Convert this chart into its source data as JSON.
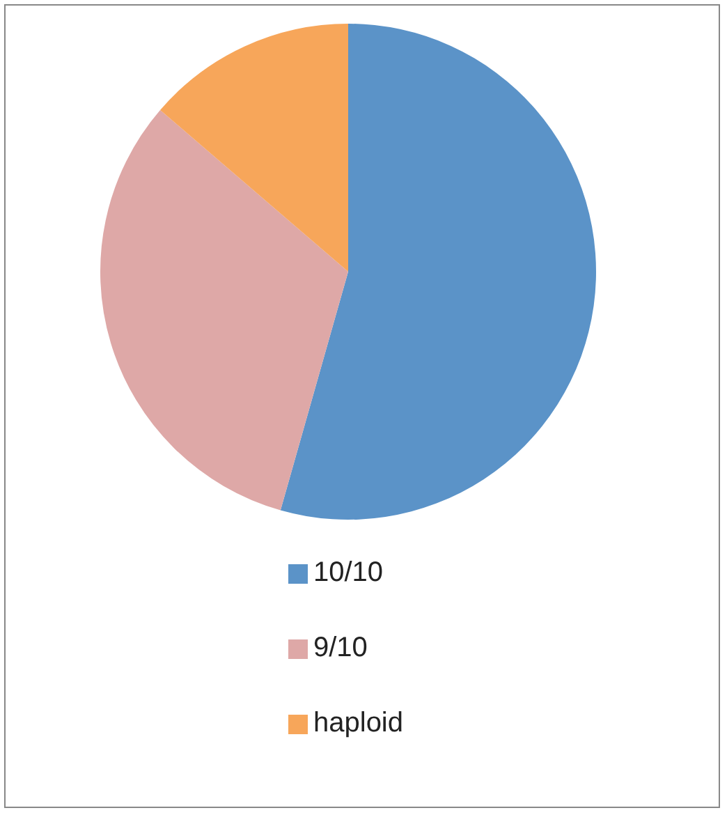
{
  "chart_data": {
    "type": "pie",
    "categories": [
      "10/10",
      "9/10",
      "haploid"
    ],
    "values": [
      54.4,
      31.9,
      13.7
    ],
    "colors": [
      "#5b93c8",
      "#dea8a7",
      "#f7a65a"
    ],
    "legend": "bottom"
  }
}
